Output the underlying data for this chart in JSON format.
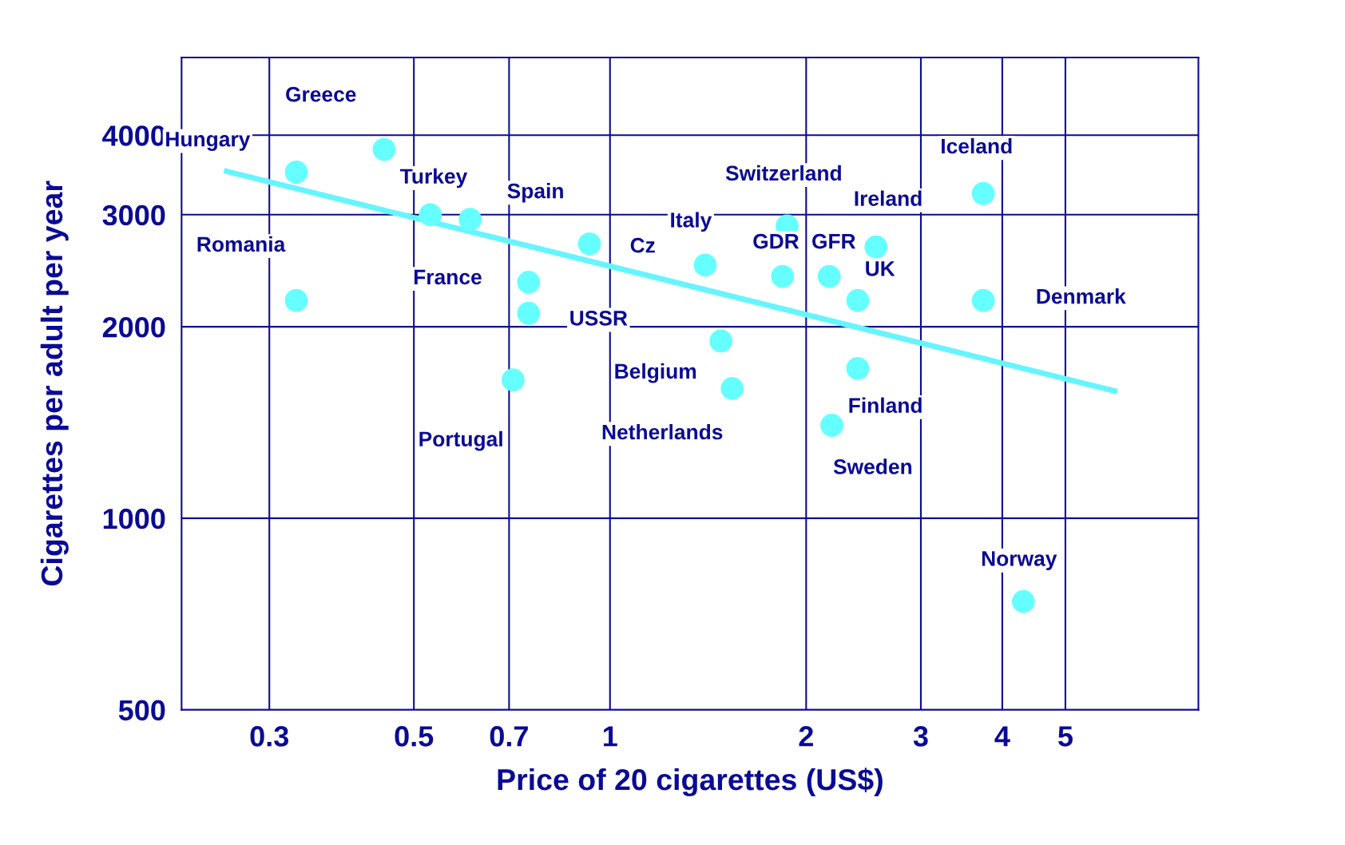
{
  "chart_data": {
    "type": "scatter",
    "xlabel": "Price of 20 cigarettes (US$)",
    "ylabel": "Cigarettes per adult per year",
    "log": "xy",
    "grid": true,
    "legend": false,
    "marker": "circle",
    "xlim": [
      0.22,
      8
    ],
    "xticks": [
      0.3,
      0.5,
      0.7,
      1,
      2,
      3,
      4,
      5
    ],
    "ylim": [
      500,
      5300
    ],
    "yticks": [
      500,
      1000,
      2000,
      3000,
      4000
    ],
    "series": [
      {
        "color": "#66ffff",
        "x": [
          0.33,
          0.45,
          0.33,
          0.53,
          0.61,
          0.93,
          0.75,
          0.75,
          0.71,
          1.4,
          1.48,
          1.54,
          1.87,
          1.84,
          2.17,
          2.4,
          2.56,
          2.4,
          2.19,
          3.74,
          3.74,
          4.31
        ],
        "values": [
          3500,
          3800,
          2200,
          3000,
          2950,
          2700,
          2350,
          2100,
          1650,
          2500,
          1900,
          1600,
          2880,
          2400,
          2400,
          2200,
          2670,
          1720,
          1400,
          3240,
          2200,
          740
        ]
      },
      {
        "type": "line",
        "color": "#66f5ff",
        "marker": "none",
        "line_style": "solid",
        "x": [
          0.258,
          5.95
        ],
        "values": [
          3510,
          1585
        ]
      }
    ],
    "annotations": [
      {
        "text": "Hungary",
        "x": 0.33,
        "y": 3500
      },
      {
        "text": "Greece",
        "x": 0.45,
        "y": 3800
      },
      {
        "text": "Romania",
        "x": 0.33,
        "y": 2200
      },
      {
        "text": "Turkey",
        "x": 0.53,
        "y": 3000
      },
      {
        "text": "Spain",
        "x": 0.61,
        "y": 2950
      },
      {
        "text": "Cz",
        "x": 0.93,
        "y": 2700
      },
      {
        "text": "France",
        "x": 0.75,
        "y": 2350
      },
      {
        "text": "USSR",
        "x": 0.75,
        "y": 2100
      },
      {
        "text": "Portugal",
        "x": 0.71,
        "y": 1650
      },
      {
        "text": "Italy",
        "x": 1.4,
        "y": 2500
      },
      {
        "text": "Belgium",
        "x": 1.48,
        "y": 1900
      },
      {
        "text": "Netherlands",
        "x": 1.54,
        "y": 1600
      },
      {
        "text": "Switzerland",
        "x": 1.87,
        "y": 2880
      },
      {
        "text": "GDR",
        "x": 1.84,
        "y": 2400
      },
      {
        "text": "GFR",
        "x": 2.17,
        "y": 2400
      },
      {
        "text": "UK",
        "x": 2.4,
        "y": 2200
      },
      {
        "text": "Ireland",
        "x": 2.56,
        "y": 2670
      },
      {
        "text": "Finland",
        "x": 2.4,
        "y": 1720
      },
      {
        "text": "Sweden",
        "x": 2.19,
        "y": 1400
      },
      {
        "text": "Iceland",
        "x": 3.74,
        "y": 3240
      },
      {
        "text": "Denmark",
        "x": 3.74,
        "y": 2200
      },
      {
        "text": "Norway",
        "x": 4.31,
        "y": 740
      }
    ]
  }
}
